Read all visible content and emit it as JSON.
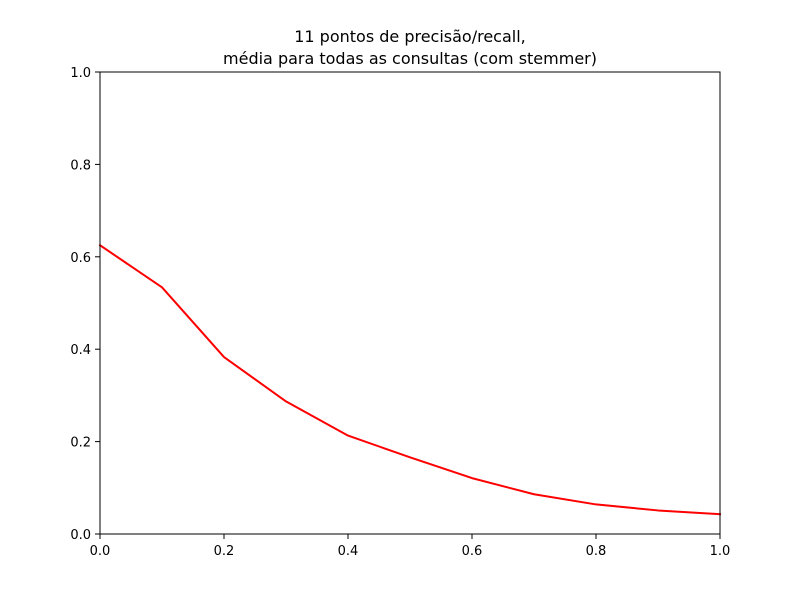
{
  "chart_data": {
    "type": "line",
    "title_lines": [
      "11 pontos de precisão/recall,",
      "média para todas as consultas (com stemmer)"
    ],
    "xlabel": "",
    "ylabel": "",
    "xlim": [
      0.0,
      1.0
    ],
    "ylim": [
      0.0,
      1.0
    ],
    "xticks": [
      0.0,
      0.2,
      0.4,
      0.6,
      0.8,
      1.0
    ],
    "yticks": [
      0.0,
      0.2,
      0.4,
      0.6,
      0.8,
      1.0
    ],
    "xtick_labels": [
      "0.0",
      "0.2",
      "0.4",
      "0.6",
      "0.8",
      "1.0"
    ],
    "ytick_labels": [
      "0.0",
      "0.2",
      "0.4",
      "0.6",
      "0.8",
      "1.0"
    ],
    "grid": false,
    "series": [
      {
        "color": "#ff0000",
        "x": [
          0.0,
          0.1,
          0.2,
          0.3,
          0.4,
          0.5,
          0.6,
          0.7,
          0.8,
          0.9,
          1.0
        ],
        "y": [
          0.625,
          0.534,
          0.383,
          0.287,
          0.213,
          0.166,
          0.121,
          0.086,
          0.064,
          0.051,
          0.043
        ]
      }
    ]
  }
}
